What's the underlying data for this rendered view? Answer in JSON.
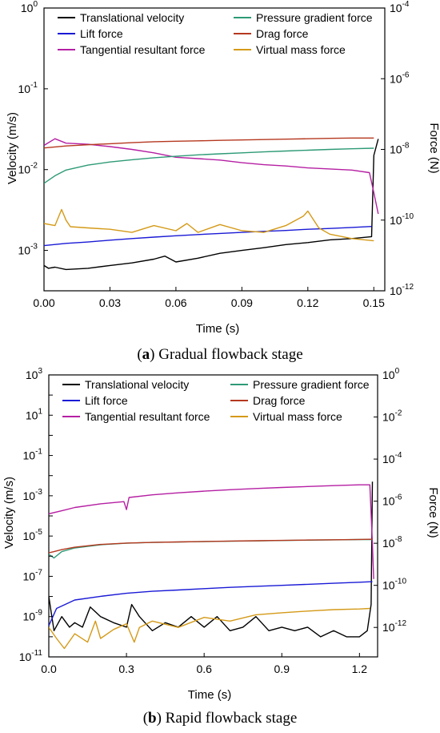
{
  "chart_data": [
    {
      "type": "line",
      "caption_letter": "a",
      "caption_text": "Gradual flowback stage",
      "xlabel": "Time (s)",
      "ylabel_left": "Velocity (m/s)",
      "ylabel_right": "Force (N)",
      "xlim": [
        0,
        0.155
      ],
      "xticks": [
        "0.00",
        "0.03",
        "0.06",
        "0.09",
        "0.12",
        "0.15"
      ],
      "xtick_values": [
        0,
        0.03,
        0.06,
        0.09,
        0.12,
        0.15
      ],
      "ylim_left_exp": [
        -3.5,
        0
      ],
      "ylim_right_exp": [
        -12,
        -4
      ],
      "yticks_left": [
        {
          "base": "10",
          "exp": "0",
          "value_exp": 0
        },
        {
          "base": "10",
          "exp": "-1",
          "value_exp": -1
        },
        {
          "base": "10",
          "exp": "-2",
          "value_exp": -2
        },
        {
          "base": "10",
          "exp": "-3",
          "value_exp": -3
        }
      ],
      "yticks_right": [
        {
          "base": "10",
          "exp": "-4",
          "value_exp": -4
        },
        {
          "base": "10",
          "exp": "-6",
          "value_exp": -6
        },
        {
          "base": "10",
          "exp": "-8",
          "value_exp": -8
        },
        {
          "base": "10",
          "exp": "-10",
          "value_exp": -10
        },
        {
          "base": "10",
          "exp": "-12",
          "value_exp": -12
        }
      ],
      "legend": [
        {
          "name": "Translational velocity",
          "color": "#000000"
        },
        {
          "name": "Pressure gradient force",
          "color": "#2e9a77"
        },
        {
          "name": "Lift force",
          "color": "#1a1ad6"
        },
        {
          "name": "Drag force",
          "color": "#b5381f"
        },
        {
          "name": "Tangential resultant force",
          "color": "#b51fa3"
        },
        {
          "name": "Virtual mass force",
          "color": "#d49a18"
        }
      ],
      "series": [
        {
          "name": "Translational velocity",
          "axis": "left",
          "color": "#000000",
          "x": [
            0,
            0.002,
            0.005,
            0.01,
            0.02,
            0.03,
            0.04,
            0.05,
            0.055,
            0.06,
            0.07,
            0.08,
            0.09,
            0.1,
            0.11,
            0.12,
            0.13,
            0.14,
            0.149,
            0.15,
            0.152
          ],
          "y": [
            0.00065,
            0.0006,
            0.00062,
            0.00058,
            0.0006,
            0.00065,
            0.0007,
            0.00078,
            0.00085,
            0.00072,
            0.0008,
            0.00092,
            0.001,
            0.00108,
            0.00118,
            0.00125,
            0.00135,
            0.0014,
            0.00148,
            0.015,
            0.024
          ]
        },
        {
          "name": "Lift force",
          "axis": "right",
          "color": "#1a1ad6",
          "x": [
            0,
            0.01,
            0.02,
            0.03,
            0.04,
            0.05,
            0.06,
            0.07,
            0.08,
            0.09,
            0.1,
            0.11,
            0.12,
            0.13,
            0.14,
            0.149
          ],
          "y": [
            1.9e-11,
            2.2e-11,
            2.4e-11,
            2.7e-11,
            3e-11,
            3.3e-11,
            3.6e-11,
            3.9e-11,
            4.2e-11,
            4.5e-11,
            4.8e-11,
            5.1e-11,
            5.5e-11,
            5.8e-11,
            6.2e-11,
            6.6e-11
          ]
        },
        {
          "name": "Tangential resultant force",
          "axis": "right",
          "color": "#b51fa3",
          "x": [
            0,
            0.005,
            0.01,
            0.02,
            0.03,
            0.04,
            0.05,
            0.06,
            0.07,
            0.08,
            0.09,
            0.1,
            0.11,
            0.12,
            0.13,
            0.14,
            0.148,
            0.15,
            0.152
          ],
          "y": [
            1.3e-08,
            2e-08,
            1.5e-08,
            1.4e-08,
            1.2e-08,
            1e-08,
            8e-09,
            6e-09,
            5.5e-09,
            5e-09,
            4.2e-09,
            3.7e-09,
            3.4e-09,
            3e-09,
            2.8e-09,
            2.6e-09,
            2.2e-09,
            6e-10,
            1.5e-10
          ]
        },
        {
          "name": "Pressure gradient force",
          "axis": "right",
          "color": "#2e9a77",
          "x": [
            0,
            0.005,
            0.01,
            0.02,
            0.03,
            0.04,
            0.05,
            0.06,
            0.07,
            0.08,
            0.09,
            0.1,
            0.11,
            0.12,
            0.13,
            0.14,
            0.15
          ],
          "y": [
            1.1e-09,
            1.8e-09,
            2.6e-09,
            3.6e-09,
            4.4e-09,
            5.1e-09,
            5.8e-09,
            6.4e-09,
            7e-09,
            7.5e-09,
            8e-09,
            8.5e-09,
            9e-09,
            9.5e-09,
            1e-08,
            1.04e-08,
            1.08e-08
          ]
        },
        {
          "name": "Drag force",
          "axis": "right",
          "color": "#b5381f",
          "x": [
            0,
            0.01,
            0.02,
            0.03,
            0.04,
            0.05,
            0.06,
            0.07,
            0.08,
            0.09,
            0.1,
            0.11,
            0.12,
            0.13,
            0.14,
            0.15
          ],
          "y": [
            1.1e-08,
            1.25e-08,
            1.35e-08,
            1.45e-08,
            1.55e-08,
            1.65e-08,
            1.7e-08,
            1.75e-08,
            1.8e-08,
            1.85e-08,
            1.9e-08,
            1.95e-08,
            2e-08,
            2.05e-08,
            2.1e-08,
            2.1e-08
          ]
        },
        {
          "name": "Virtual mass force",
          "axis": "right",
          "color": "#d49a18",
          "x": [
            0,
            0.005,
            0.008,
            0.01,
            0.012,
            0.02,
            0.03,
            0.04,
            0.05,
            0.06,
            0.065,
            0.07,
            0.08,
            0.09,
            0.1,
            0.11,
            0.118,
            0.12,
            0.125,
            0.13,
            0.14,
            0.15
          ],
          "y": [
            8e-11,
            7e-11,
            2e-10,
            1e-10,
            6.5e-11,
            6e-11,
            5.5e-11,
            4.5e-11,
            7e-11,
            5e-11,
            8e-11,
            4.5e-11,
            7.5e-11,
            5e-11,
            4.5e-11,
            7e-11,
            1.3e-10,
            1.8e-10,
            6e-11,
            4e-11,
            3e-11,
            2.6e-11
          ]
        }
      ]
    },
    {
      "type": "line",
      "caption_letter": "b",
      "caption_text": "Rapid flowback stage",
      "xlabel": "Time (s)",
      "ylabel_left": "Velocity (m/s)",
      "ylabel_right": "Force (N)",
      "xlim": [
        0,
        1.27
      ],
      "xticks": [
        "0.0",
        "0.3",
        "0.6",
        "0.9",
        "1.2"
      ],
      "xtick_values": [
        0,
        0.3,
        0.6,
        0.9,
        1.2
      ],
      "ylim_left_exp": [
        -11,
        3
      ],
      "ylim_right_exp": [
        -13.4,
        0
      ],
      "yticks_left": [
        {
          "base": "10",
          "exp": "3",
          "value_exp": 3
        },
        {
          "base": "10",
          "exp": "1",
          "value_exp": 1
        },
        {
          "base": "10",
          "exp": "-1",
          "value_exp": -1
        },
        {
          "base": "10",
          "exp": "-3",
          "value_exp": -3
        },
        {
          "base": "10",
          "exp": "-5",
          "value_exp": -5
        },
        {
          "base": "10",
          "exp": "-7",
          "value_exp": -7
        },
        {
          "base": "10",
          "exp": "-9",
          "value_exp": -9
        },
        {
          "base": "10",
          "exp": "-11",
          "value_exp": -11
        }
      ],
      "yticks_right": [
        {
          "base": "10",
          "exp": "0",
          "value_exp": 0
        },
        {
          "base": "10",
          "exp": "-2",
          "value_exp": -2
        },
        {
          "base": "10",
          "exp": "-4",
          "value_exp": -4
        },
        {
          "base": "10",
          "exp": "-6",
          "value_exp": -6
        },
        {
          "base": "10",
          "exp": "-8",
          "value_exp": -8
        },
        {
          "base": "10",
          "exp": "-10",
          "value_exp": -10
        },
        {
          "base": "10",
          "exp": "-12",
          "value_exp": -12
        }
      ],
      "legend": [
        {
          "name": "Translational velocity",
          "color": "#000000"
        },
        {
          "name": "Pressure gradient force",
          "color": "#2e9a77"
        },
        {
          "name": "Lift force",
          "color": "#1a1ad6"
        },
        {
          "name": "Drag force",
          "color": "#b5381f"
        },
        {
          "name": "Tangential resultant force",
          "color": "#b51fa3"
        },
        {
          "name": "Virtual mass force",
          "color": "#d49a18"
        }
      ],
      "series": [
        {
          "name": "Translational velocity",
          "axis": "left",
          "color": "#000000",
          "x": [
            0,
            0.02,
            0.05,
            0.08,
            0.1,
            0.13,
            0.16,
            0.2,
            0.25,
            0.3,
            0.32,
            0.35,
            0.4,
            0.45,
            0.5,
            0.55,
            0.6,
            0.65,
            0.7,
            0.75,
            0.8,
            0.85,
            0.9,
            0.95,
            1.0,
            1.05,
            1.1,
            1.15,
            1.2,
            1.23,
            1.245,
            1.25
          ],
          "y": [
            1e-08,
            2e-10,
            1e-09,
            3e-10,
            5e-10,
            3e-10,
            3e-09,
            1e-09,
            5e-10,
            3e-10,
            4e-09,
            1e-09,
            2e-10,
            5e-10,
            3e-10,
            1e-09,
            3e-10,
            1e-09,
            2e-10,
            3e-10,
            1e-09,
            2e-10,
            3e-10,
            2e-10,
            3e-10,
            1e-10,
            2e-10,
            1e-10,
            1e-10,
            2e-10,
            4e-09,
            0.005
          ]
        },
        {
          "name": "Lift force",
          "axis": "right",
          "color": "#1a1ad6",
          "x": [
            0,
            0.03,
            0.1,
            0.2,
            0.3,
            0.4,
            0.5,
            0.6,
            0.7,
            0.8,
            0.9,
            1.0,
            1.1,
            1.2,
            1.25
          ],
          "y": [
            1.2e-12,
            8e-12,
            2e-11,
            3e-11,
            4.2e-11,
            5.2e-11,
            6e-11,
            7e-11,
            8e-11,
            9e-11,
            1e-10,
            1.12e-10,
            1.25e-10,
            1.4e-10,
            1.5e-10
          ]
        },
        {
          "name": "Tangential resultant force",
          "axis": "right",
          "color": "#b51fa3",
          "x": [
            0,
            0.05,
            0.1,
            0.2,
            0.29,
            0.3,
            0.31,
            0.4,
            0.5,
            0.6,
            0.7,
            0.8,
            0.9,
            1.0,
            1.1,
            1.2,
            1.24,
            1.25,
            1.255
          ],
          "y": [
            2.5e-07,
            3.5e-07,
            5e-07,
            7.5e-07,
            9.5e-07,
            4e-07,
            1.5e-06,
            2e-06,
            2.5e-06,
            3e-06,
            3.5e-06,
            4e-06,
            4.5e-06,
            5e-06,
            5.5e-06,
            6e-06,
            6e-06,
            1e-08,
            2e-10
          ]
        },
        {
          "name": "Pressure gradient force",
          "axis": "right",
          "color": "#2e9a77",
          "x": [
            0,
            0.02,
            0.05,
            0.1,
            0.2,
            0.3,
            0.4,
            0.5,
            0.6,
            0.7,
            0.8,
            0.9,
            1.0,
            1.1,
            1.2,
            1.25
          ],
          "y": [
            3e-09,
            2e-09,
            4e-09,
            6e-09,
            8.5e-09,
            1e-08,
            1.1e-08,
            1.15e-08,
            1.2e-08,
            1.25e-08,
            1.3e-08,
            1.35e-08,
            1.4e-08,
            1.45e-08,
            1.5e-08,
            1.5e-08
          ]
        },
        {
          "name": "Drag force",
          "axis": "right",
          "color": "#b5381f",
          "x": [
            0,
            0.02,
            0.05,
            0.1,
            0.2,
            0.3,
            0.4,
            0.5,
            0.6,
            0.7,
            0.8,
            0.9,
            1.0,
            1.1,
            1.2,
            1.25
          ],
          "y": [
            3.5e-09,
            4e-09,
            5e-09,
            6.5e-09,
            8.8e-09,
            1.02e-08,
            1.1e-08,
            1.16e-08,
            1.22e-08,
            1.27e-08,
            1.32e-08,
            1.37e-08,
            1.42e-08,
            1.47e-08,
            1.52e-08,
            1.55e-08
          ]
        },
        {
          "name": "Virtual mass force",
          "axis": "right",
          "color": "#d49a18",
          "x": [
            0,
            0.03,
            0.06,
            0.1,
            0.15,
            0.18,
            0.2,
            0.25,
            0.3,
            0.33,
            0.35,
            0.4,
            0.5,
            0.6,
            0.7,
            0.8,
            0.9,
            1.0,
            1.1,
            1.2,
            1.24
          ],
          "y": [
            1e-12,
            3e-13,
            1e-13,
            5e-13,
            2e-13,
            2e-12,
            3e-13,
            8e-13,
            1.5e-12,
            2e-13,
            1e-12,
            2e-12,
            1e-12,
            3e-12,
            2e-12,
            4e-12,
            5e-12,
            6e-12,
            7e-12,
            7.5e-12,
            8e-12
          ]
        }
      ]
    }
  ]
}
